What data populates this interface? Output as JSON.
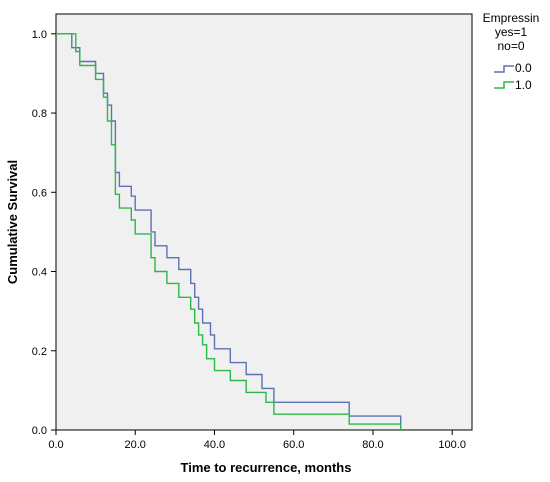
{
  "chart_data": {
    "type": "line",
    "subtype": "kaplan-meier step",
    "xlabel": "Time to recurrence, months",
    "ylabel": "Cumulative Survival",
    "xlim": [
      0,
      105
    ],
    "ylim": [
      0,
      1.05
    ],
    "x_ticks": [
      "0.0",
      "20.0",
      "40.0",
      "60.0",
      "80.0",
      "100.0"
    ],
    "y_ticks": [
      "0.0",
      "0.2",
      "0.4",
      "0.6",
      "0.8",
      "1.0"
    ],
    "grid": false,
    "plot_background": "#f0f0f0",
    "legend": {
      "placement": "right",
      "title_lines": [
        "Empressin",
        "yes=1",
        "no=0"
      ]
    },
    "series": [
      {
        "name": "0.0",
        "color": "#5b73b5",
        "points": [
          [
            0,
            1.0
          ],
          [
            4,
            1.0
          ],
          [
            4,
            0.965
          ],
          [
            6,
            0.965
          ],
          [
            6,
            0.93
          ],
          [
            10,
            0.93
          ],
          [
            10,
            0.9
          ],
          [
            12,
            0.9
          ],
          [
            12,
            0.85
          ],
          [
            13,
            0.85
          ],
          [
            13,
            0.82
          ],
          [
            14,
            0.82
          ],
          [
            14,
            0.78
          ],
          [
            15,
            0.78
          ],
          [
            15,
            0.65
          ],
          [
            16,
            0.65
          ],
          [
            16,
            0.615
          ],
          [
            19,
            0.615
          ],
          [
            19,
            0.59
          ],
          [
            20,
            0.59
          ],
          [
            20,
            0.555
          ],
          [
            24,
            0.555
          ],
          [
            24,
            0.5
          ],
          [
            25,
            0.5
          ],
          [
            25,
            0.465
          ],
          [
            28,
            0.465
          ],
          [
            28,
            0.435
          ],
          [
            31,
            0.435
          ],
          [
            31,
            0.405
          ],
          [
            34,
            0.405
          ],
          [
            34,
            0.37
          ],
          [
            35,
            0.37
          ],
          [
            35,
            0.335
          ],
          [
            36,
            0.335
          ],
          [
            36,
            0.305
          ],
          [
            37,
            0.305
          ],
          [
            37,
            0.27
          ],
          [
            39,
            0.27
          ],
          [
            39,
            0.24
          ],
          [
            40,
            0.24
          ],
          [
            40,
            0.205
          ],
          [
            44,
            0.205
          ],
          [
            44,
            0.17
          ],
          [
            48,
            0.17
          ],
          [
            48,
            0.14
          ],
          [
            52,
            0.14
          ],
          [
            52,
            0.105
          ],
          [
            55,
            0.105
          ],
          [
            55,
            0.07
          ],
          [
            74,
            0.07
          ],
          [
            74,
            0.035
          ],
          [
            87,
            0.035
          ],
          [
            87,
            0.005
          ]
        ]
      },
      {
        "name": "1.0",
        "color": "#2db84a",
        "points": [
          [
            0,
            1.0
          ],
          [
            5,
            1.0
          ],
          [
            5,
            0.955
          ],
          [
            6,
            0.955
          ],
          [
            6,
            0.92
          ],
          [
            10,
            0.92
          ],
          [
            10,
            0.885
          ],
          [
            12,
            0.885
          ],
          [
            12,
            0.84
          ],
          [
            13,
            0.84
          ],
          [
            13,
            0.78
          ],
          [
            14,
            0.78
          ],
          [
            14,
            0.72
          ],
          [
            15,
            0.72
          ],
          [
            15,
            0.595
          ],
          [
            16,
            0.595
          ],
          [
            16,
            0.56
          ],
          [
            19,
            0.56
          ],
          [
            19,
            0.53
          ],
          [
            20,
            0.53
          ],
          [
            20,
            0.495
          ],
          [
            24,
            0.495
          ],
          [
            24,
            0.435
          ],
          [
            25,
            0.435
          ],
          [
            25,
            0.4
          ],
          [
            28,
            0.4
          ],
          [
            28,
            0.37
          ],
          [
            31,
            0.37
          ],
          [
            31,
            0.335
          ],
          [
            34,
            0.335
          ],
          [
            34,
            0.305
          ],
          [
            35,
            0.305
          ],
          [
            35,
            0.27
          ],
          [
            36,
            0.27
          ],
          [
            36,
            0.24
          ],
          [
            37,
            0.24
          ],
          [
            37,
            0.215
          ],
          [
            38,
            0.215
          ],
          [
            38,
            0.18
          ],
          [
            40,
            0.18
          ],
          [
            40,
            0.15
          ],
          [
            44,
            0.15
          ],
          [
            44,
            0.125
          ],
          [
            48,
            0.125
          ],
          [
            48,
            0.095
          ],
          [
            53,
            0.095
          ],
          [
            53,
            0.07
          ],
          [
            55,
            0.07
          ],
          [
            55,
            0.04
          ],
          [
            74,
            0.04
          ],
          [
            74,
            0.015
          ],
          [
            87,
            0.015
          ],
          [
            87,
            0.0
          ]
        ]
      }
    ]
  }
}
